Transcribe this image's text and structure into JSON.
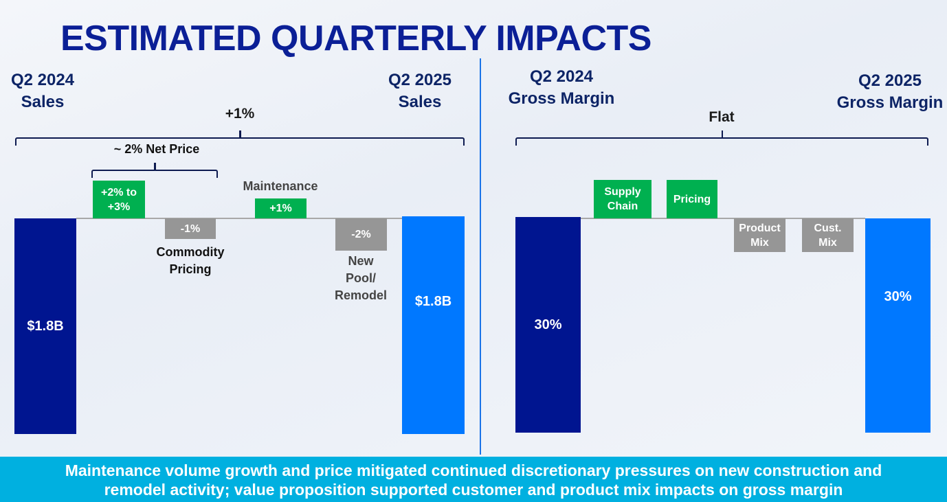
{
  "title": "ESTIMATED QUARTERLY IMPACTS",
  "chart_data": [
    {
      "type": "waterfall",
      "title": "Sales",
      "start_label": [
        "Q2 2024",
        "Sales"
      ],
      "end_label": [
        "Q2 2025",
        "Sales"
      ],
      "start_value": "$1.8B",
      "end_value": "$1.8B",
      "total_change": "+1%",
      "group_bracket": "~ 2% Net Price",
      "steps": [
        {
          "name": "Net Price",
          "value": "+2% to +3%",
          "low": 2,
          "high": 3,
          "direction": "up"
        },
        {
          "name": "Commodity Pricing",
          "value": "-1%",
          "numeric": -1,
          "direction": "down"
        },
        {
          "name": "Maintenance",
          "value": "+1%",
          "numeric": 1,
          "direction": "up"
        },
        {
          "name": "New Pool/ Remodel",
          "value": "-2%",
          "numeric": -2,
          "direction": "down"
        }
      ],
      "labels": {
        "commodity1": "Commodity",
        "commodity2": "Pricing",
        "maintenance": "Maintenance",
        "newpool1": "New",
        "newpool2": "Pool/",
        "newpool3": "Remodel"
      },
      "colors": {
        "start": "#001590",
        "end": "#0078ff",
        "up": "#00b050",
        "down": "#969696"
      }
    },
    {
      "type": "waterfall",
      "title": "Gross Margin",
      "start_label": [
        "Q2 2024",
        "Gross Margin"
      ],
      "end_label": [
        "Q2 2025",
        "Gross Margin"
      ],
      "start_value": "30%",
      "end_value": "30%",
      "total_change": "Flat",
      "steps": [
        {
          "name": "Supply Chain",
          "lines": [
            "Supply",
            "Chain"
          ],
          "direction": "up"
        },
        {
          "name": "Pricing",
          "lines": [
            "Pricing"
          ],
          "direction": "up"
        },
        {
          "name": "Product Mix",
          "lines": [
            "Product",
            "Mix"
          ],
          "direction": "down"
        },
        {
          "name": "Cust. Mix",
          "lines": [
            "Cust.",
            "Mix"
          ],
          "direction": "down"
        }
      ]
    }
  ],
  "banner": {
    "line1": "Maintenance volume growth and price mitigated continued discretionary pressures on new construction and",
    "line2": "remodel activity; value proposition supported customer and product mix impacts on gross margin"
  }
}
